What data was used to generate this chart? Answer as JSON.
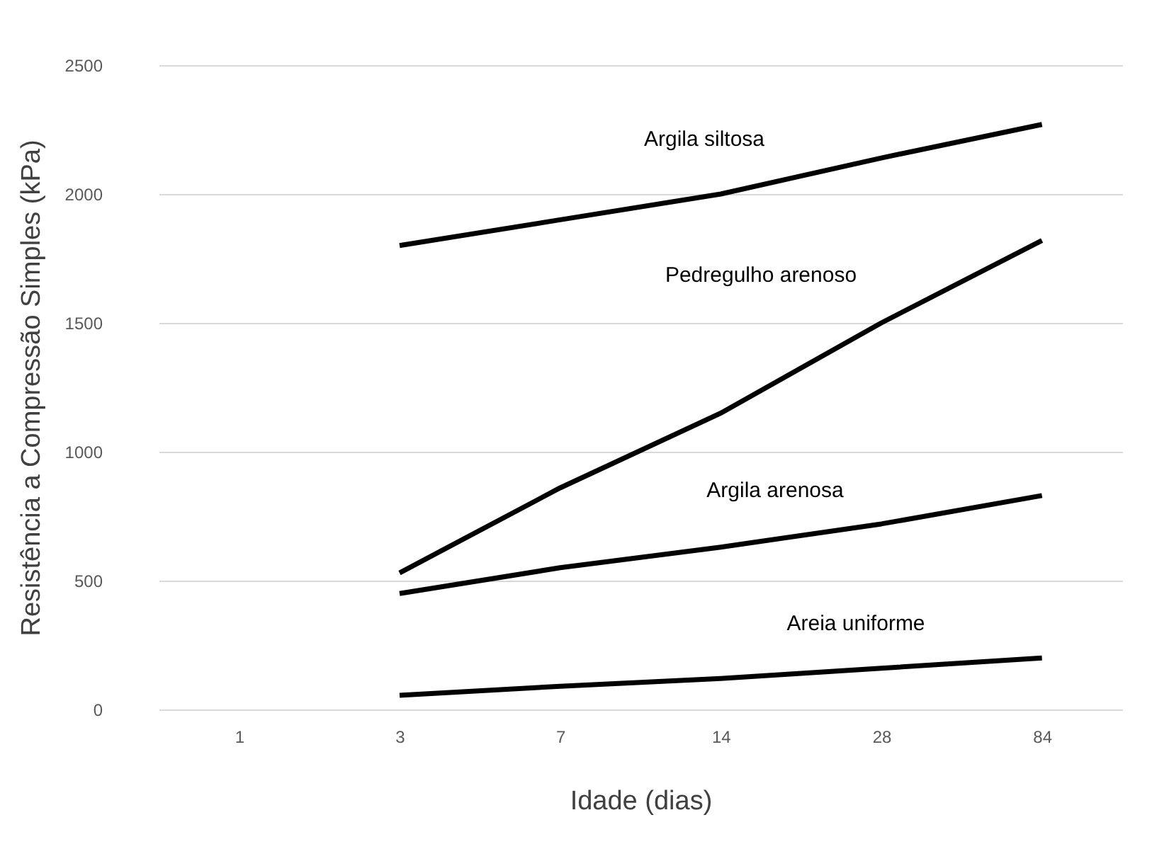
{
  "chart_data": {
    "type": "line",
    "xlabel": "Idade (dias)",
    "ylabel": "Resistência a Compressão Simples (kPa)",
    "categories": [
      "1",
      "3",
      "7",
      "14",
      "28",
      "84"
    ],
    "series": [
      {
        "name": "Argila siltosa",
        "color": "#000000",
        "values": [
          null,
          1800,
          1900,
          2000,
          2140,
          2270
        ]
      },
      {
        "name": "Pedregulho arenoso",
        "color": "#000000",
        "values": [
          null,
          530,
          860,
          1150,
          1500,
          1820
        ]
      },
      {
        "name": "Argila arenosa",
        "color": "#000000",
        "values": [
          null,
          450,
          550,
          630,
          720,
          830
        ]
      },
      {
        "name": "Areia uniforme",
        "color": "#000000",
        "values": [
          null,
          55,
          90,
          120,
          160,
          200
        ]
      }
    ],
    "ylim": [
      0,
      2500
    ],
    "yticks": [
      0,
      500,
      1000,
      1500,
      2000,
      2500
    ],
    "grid": "y",
    "marker": "none",
    "line_style": "solid"
  }
}
